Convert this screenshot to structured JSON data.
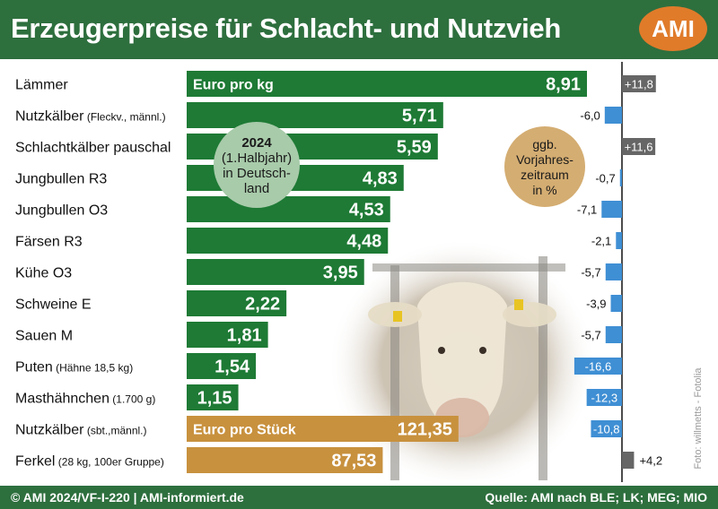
{
  "title": "Erzeugerpreise für Schlacht- und Nutzvieh",
  "logo": "AMI",
  "footer": {
    "left": "© AMI 2024/VF-I-220 | AMI-informiert.de",
    "right": "Quelle: AMI nach BLE; LK; MEG; MIO"
  },
  "photo_credit": "Foto: willmetts - Fotolia",
  "colors": {
    "header": "#2e6f3e",
    "bar_kg": "#1e7a35",
    "bar_piece": "#c8913e",
    "change_up": "#666666",
    "change_down": "#3f8fd4",
    "logo": "#e07b2a",
    "circle_green": "#a8cbaa",
    "circle_tan": "#d4ad72"
  },
  "chart_data": {
    "type": "bar",
    "orientation": "horizontal",
    "categories": [
      {
        "name": "Lämmer",
        "note": ""
      },
      {
        "name": "Nutzkälber",
        "note": "(Fleckv., männl.)"
      },
      {
        "name": "Schlachtkälber pauschal",
        "note": ""
      },
      {
        "name": "Jungbullen R3",
        "note": ""
      },
      {
        "name": "Jungbullen O3",
        "note": ""
      },
      {
        "name": "Färsen R3",
        "note": ""
      },
      {
        "name": "Kühe O3",
        "note": ""
      },
      {
        "name": "Schweine E",
        "note": ""
      },
      {
        "name": "Sauen M",
        "note": ""
      },
      {
        "name": "Puten",
        "note": "(Hähne 18,5 kg)"
      },
      {
        "name": "Masthähnchen",
        "note": "(1.700 g)"
      },
      {
        "name": "Nutzkälber",
        "note": "(sbt.,männl.)"
      },
      {
        "name": "Ferkel",
        "note": "(28 kg, 100er Gruppe)"
      }
    ],
    "series": [
      {
        "name": "Euro pro kg",
        "values": [
          8.91,
          5.71,
          5.59,
          4.83,
          4.53,
          4.48,
          3.95,
          2.22,
          1.81,
          1.54,
          1.15,
          null,
          null
        ],
        "labels": [
          "8,91",
          "5,71",
          "5,59",
          "4,83",
          "4,53",
          "4,48",
          "3,95",
          "2,22",
          "1,81",
          "1,54",
          "1,15",
          "",
          ""
        ]
      },
      {
        "name": "Euro pro Stück",
        "values": [
          null,
          null,
          null,
          null,
          null,
          null,
          null,
          null,
          null,
          null,
          null,
          121.35,
          87.53
        ],
        "labels": [
          "",
          "",
          "",
          "",
          "",
          "",
          "",
          "",
          "",
          "",
          "",
          "121,35",
          "87,53"
        ]
      }
    ],
    "change": {
      "values": [
        11.8,
        -6.0,
        11.6,
        -0.7,
        -7.1,
        -2.1,
        -5.7,
        -3.9,
        -5.7,
        -16.6,
        -12.3,
        -10.8,
        4.2
      ],
      "labels": [
        "+11,8",
        "-6,0",
        "+11,6",
        "-0,7",
        "-7,1",
        "-2,1",
        "-5,7",
        "-3,9",
        "-5,7",
        "-16,6",
        "-12,3",
        "-10,8",
        "+4,2"
      ]
    },
    "annotation_period": [
      "2024",
      "(1.Halbjahr)",
      "in Deutsch-",
      "land"
    ],
    "annotation_change": [
      "ggb.",
      "Vorjahres-",
      "zeitraum",
      "in %"
    ]
  }
}
